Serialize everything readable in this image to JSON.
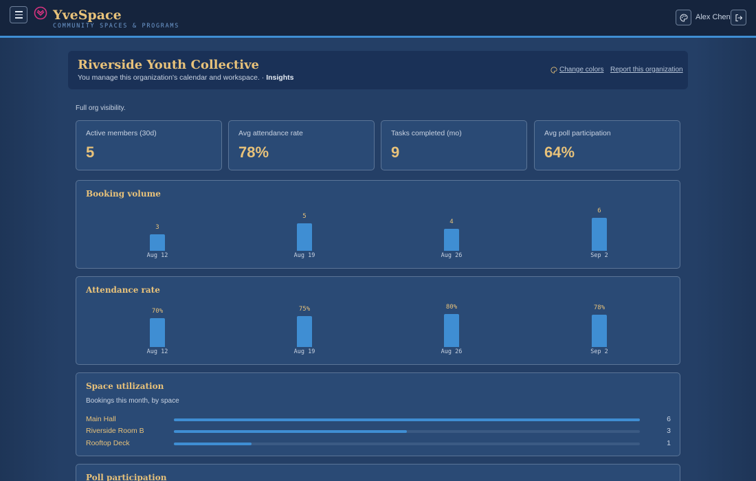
{
  "header": {
    "brand": "YveSpace",
    "tagline": "COMMUNITY SPACES & PROGRAMS",
    "user_name": "Alex Chen"
  },
  "org": {
    "title": "Riverside Youth Collective",
    "subtitle": "You manage this organization's calendar and workspace. · ",
    "section": "Insights",
    "change_colors": "Change colors",
    "report": "Report this organization"
  },
  "visibility_note": "Full org visibility.",
  "stats": [
    {
      "label": "Active members (30d)",
      "value": "5"
    },
    {
      "label": "Avg attendance rate",
      "value": "78%"
    },
    {
      "label": "Tasks completed (mo)",
      "value": "9"
    },
    {
      "label": "Avg poll participation",
      "value": "64%"
    }
  ],
  "chart_data": [
    {
      "type": "bar",
      "title": "Booking volume",
      "categories": [
        "Aug 12",
        "Aug 19",
        "Aug 26",
        "Sep 2"
      ],
      "values": [
        3,
        5,
        4,
        6
      ],
      "value_labels": [
        "3",
        "5",
        "4",
        "6"
      ]
    },
    {
      "type": "bar",
      "title": "Attendance rate",
      "categories": [
        "Aug 12",
        "Aug 19",
        "Aug 26",
        "Sep 2"
      ],
      "values": [
        70,
        75,
        80,
        78
      ],
      "value_labels": [
        "70%",
        "75%",
        "80%",
        "78%"
      ]
    }
  ],
  "utilization": {
    "title": "Space utilization",
    "subtitle": "Bookings this month, by space",
    "max": 6,
    "rows": [
      {
        "name": "Main Hall",
        "count": 6
      },
      {
        "name": "Riverside Room B",
        "count": 3
      },
      {
        "name": "Rooftop Deck",
        "count": 1
      }
    ]
  },
  "poll": {
    "title": "Poll participation"
  },
  "colors": {
    "accent": "#3f8ed3",
    "gold": "#e8c27a",
    "panel": "#2a4a75",
    "topbar": "#15243d"
  }
}
